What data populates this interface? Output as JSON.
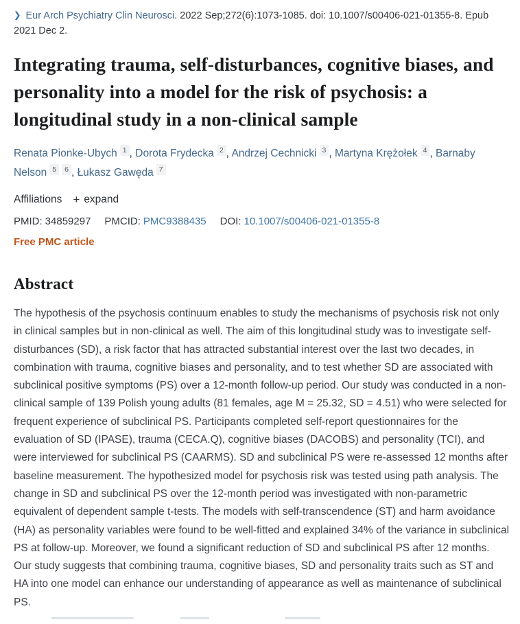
{
  "citation": {
    "chevron_icon": "❯",
    "journal": "Eur Arch Psychiatry Clin Neurosci",
    "details": ". 2022 Sep;272(6):1073-1085. doi: 10.1007/s00406-021-01355-8. Epub 2021 Dec 2."
  },
  "title": "Integrating trauma, self-disturbances, cognitive biases, and personality into a model for the risk of psychosis: a longitudinal study in a non-clinical sample",
  "authors": [
    {
      "name": "Renata Pionke-Ubych",
      "sups": [
        "1"
      ]
    },
    {
      "name": "Dorota Frydecka",
      "sups": [
        "2"
      ]
    },
    {
      "name": "Andrzej Cechnicki",
      "sups": [
        "3"
      ]
    },
    {
      "name": "Martyna Krężołek",
      "sups": [
        "4"
      ]
    },
    {
      "name": "Barnaby Nelson",
      "sups": [
        "5",
        "6"
      ]
    },
    {
      "name": "Łukasz Gawęda",
      "sups": [
        "7"
      ]
    }
  ],
  "affiliations": {
    "label": "Affiliations",
    "expand_icon": "+",
    "expand_label": "expand"
  },
  "identifiers": {
    "pmid_label": "PMID:",
    "pmid_value": "34859297",
    "pmcid_label": "PMCID:",
    "pmcid_value": "PMC9388435",
    "doi_label": "DOI:",
    "doi_value": "10.1007/s00406-021-01355-8"
  },
  "free_pmc_label": "Free PMC article",
  "abstract": {
    "heading": "Abstract",
    "text": "The hypothesis of the psychosis continuum enables to study the mechanisms of psychosis risk not only in clinical samples but in non-clinical as well. The aim of this longitudinal study was to investigate self-disturbances (SD), a risk factor that has attracted substantial interest over the last two decades, in combination with trauma, cognitive biases and personality, and to test whether SD are associated with subclinical positive symptoms (PS) over a 12-month follow-up period. Our study was conducted in a non-clinical sample of 139 Polish young adults (81 females, age M = 25.32, SD = 4.51) who were selected for frequent experience of subclinical PS. Participants completed self-report questionnaires for the evaluation of SD (IPASE), trauma (CECA.Q), cognitive biases (DACOBS) and personality (TCI), and were interviewed for subclinical PS (CAARMS). SD and subclinical PS were re-assessed 12 months after baseline measurement. The hypothesized model for psychosis risk was tested using path analysis. The change in SD and subclinical PS over the 12-month period was investigated with non-parametric equivalent of dependent sample t-tests. The models with self-transcendence (ST) and harm avoidance (HA) as personality variables were found to be well-fitted and explained 34% of the variance in subclinical PS at follow-up. Moreover, we found a significant reduction of SD and subclinical PS after 12 months. Our study suggests that combining trauma, cognitive biases, SD and personality traits such as ST and HA into one model can enhance our understanding of appearance as well as maintenance of subclinical PS."
  },
  "colors": {
    "link_blue": "#44698d",
    "chevron_blue": "#3470b8",
    "free_pmc_orange": "#c0561d",
    "title_dark": "#1c1d1f",
    "sup_badge_bg": "#f1f2f3"
  }
}
